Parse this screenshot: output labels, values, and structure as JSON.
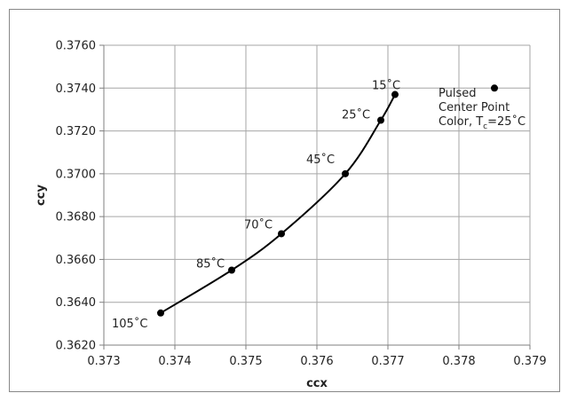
{
  "chart_data": {
    "type": "scatter",
    "xlabel": "ccx",
    "ylabel": "ccy",
    "xlim": [
      0.373,
      0.379
    ],
    "ylim": [
      0.362,
      0.376
    ],
    "x_ticks": [
      "0.373",
      "0.374",
      "0.375",
      "0.376",
      "0.377",
      "0.378",
      "0.379"
    ],
    "y_ticks": [
      "0.3620",
      "0.3640",
      "0.3660",
      "0.3680",
      "0.3700",
      "0.3720",
      "0.3740",
      "0.3760"
    ],
    "grid": true,
    "series": [
      {
        "points": [
          {
            "x": 0.3738,
            "y": 0.3635,
            "label": "105˚C"
          },
          {
            "x": 0.3748,
            "y": 0.3655,
            "label": "85˚C"
          },
          {
            "x": 0.3755,
            "y": 0.3672,
            "label": "70˚C"
          },
          {
            "x": 0.3764,
            "y": 0.37,
            "label": "45˚C"
          },
          {
            "x": 0.3769,
            "y": 0.3725,
            "label": "25˚C"
          },
          {
            "x": 0.3771,
            "y": 0.3737,
            "label": "15˚C"
          }
        ],
        "line": true,
        "color": "#000000"
      },
      {
        "points": [
          {
            "x": 0.3785,
            "y": 0.374
          }
        ],
        "line": false,
        "color": "#000000"
      }
    ],
    "annotation": {
      "lines": [
        "Pulsed",
        "Center Point",
        "Color, T"
      ],
      "subscript": "c",
      "suffix": "=25˚C"
    }
  }
}
